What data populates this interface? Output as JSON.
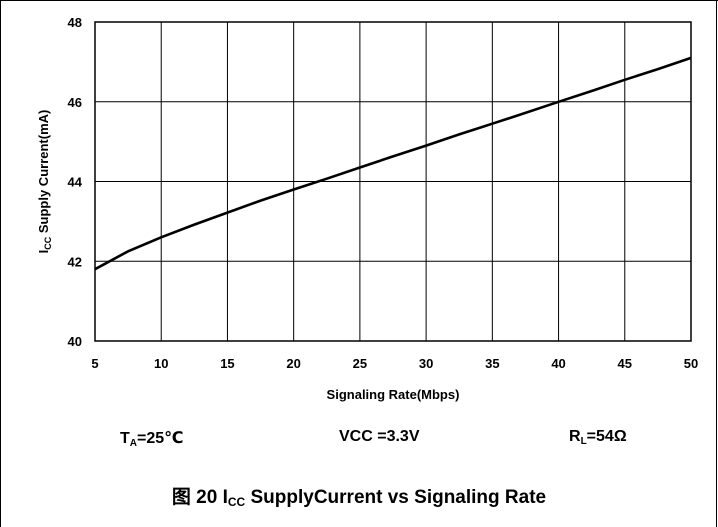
{
  "chart_data": {
    "type": "line",
    "title": "",
    "xlabel": "Signaling Rate(Mbps)",
    "ylabel_main": "I",
    "ylabel_sub": "CC",
    "ylabel_rest": " Supply Current(mA)",
    "xlim": [
      5,
      50
    ],
    "ylim": [
      40,
      48
    ],
    "xticks": [
      "5",
      "10",
      "15",
      "20",
      "25",
      "30",
      "35",
      "40",
      "45",
      "50"
    ],
    "yticks": [
      "40",
      "42",
      "44",
      "46",
      "48"
    ],
    "grid": true,
    "legend": "none",
    "series": [
      {
        "x": [
          5,
          7.5,
          10,
          12.5,
          15,
          17.5,
          20,
          22.5,
          25,
          27.5,
          30,
          32.5,
          35,
          37.5,
          40,
          42.5,
          45,
          47.5,
          50
        ],
        "y": [
          41.8,
          42.25,
          42.6,
          42.92,
          43.22,
          43.52,
          43.8,
          44.07,
          44.35,
          44.63,
          44.9,
          45.18,
          45.45,
          45.72,
          46.0,
          46.27,
          46.55,
          46.82,
          47.1
        ]
      }
    ],
    "line_color": "#000000"
  },
  "conditions": {
    "ta_main": "T",
    "ta_sub": "A",
    "ta_rest": "=25℃",
    "vcc": "VCC =3.3V",
    "rl_main": "R",
    "rl_sub": "L",
    "rl_rest": "=54Ω"
  },
  "caption": {
    "prefix": "图 20 I",
    "sub": "CC",
    "rest": " SupplyCurrent vs Signaling Rate"
  }
}
